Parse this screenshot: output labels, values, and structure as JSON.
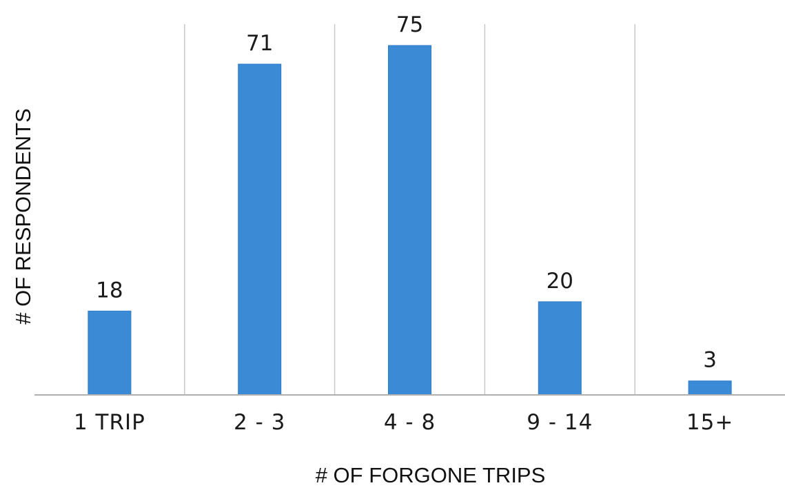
{
  "chart_data": {
    "type": "bar",
    "title": "",
    "xlabel": "# OF FORGONE TRIPS",
    "ylabel": "# OF RESPONDENTS",
    "categories": [
      "1 TRIP",
      "2 - 3",
      "4 - 8",
      "9 - 14",
      "15+"
    ],
    "values": [
      18,
      71,
      75,
      20,
      3
    ],
    "ylim": [
      0,
      85
    ],
    "grid": "vertical separators between categories",
    "legend": "none",
    "bar_color": "#3a8ad6"
  }
}
